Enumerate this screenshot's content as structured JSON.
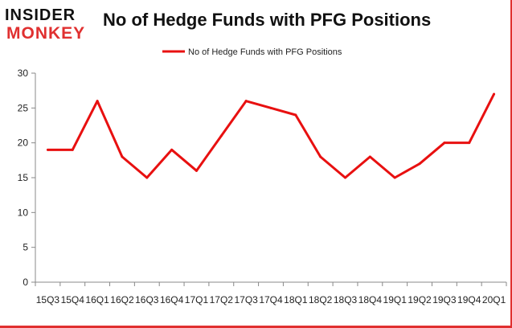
{
  "logo": {
    "line1": "INSIDER",
    "line2": "MONKEY"
  },
  "chart_data": {
    "type": "line",
    "title": "No of Hedge Funds with PFG Positions",
    "xlabel": "",
    "ylabel": "",
    "categories": [
      "15Q3",
      "15Q4",
      "16Q1",
      "16Q2",
      "16Q3",
      "16Q4",
      "17Q1",
      "17Q2",
      "17Q3",
      "17Q4",
      "18Q1",
      "18Q2",
      "18Q3",
      "18Q4",
      "19Q1",
      "19Q2",
      "19Q3",
      "19Q4",
      "20Q1"
    ],
    "series": [
      {
        "name": "No of Hedge Funds with PFG Positions",
        "values": [
          19,
          19,
          26,
          18,
          15,
          19,
          16,
          21,
          26,
          25,
          24,
          18,
          15,
          18,
          15,
          17,
          20,
          20,
          27
        ],
        "color": "#e81010"
      }
    ],
    "ylim": [
      0,
      30
    ],
    "yticks": [
      0,
      5,
      10,
      15,
      20,
      25,
      30
    ],
    "grid": false,
    "legend": "top-center"
  }
}
